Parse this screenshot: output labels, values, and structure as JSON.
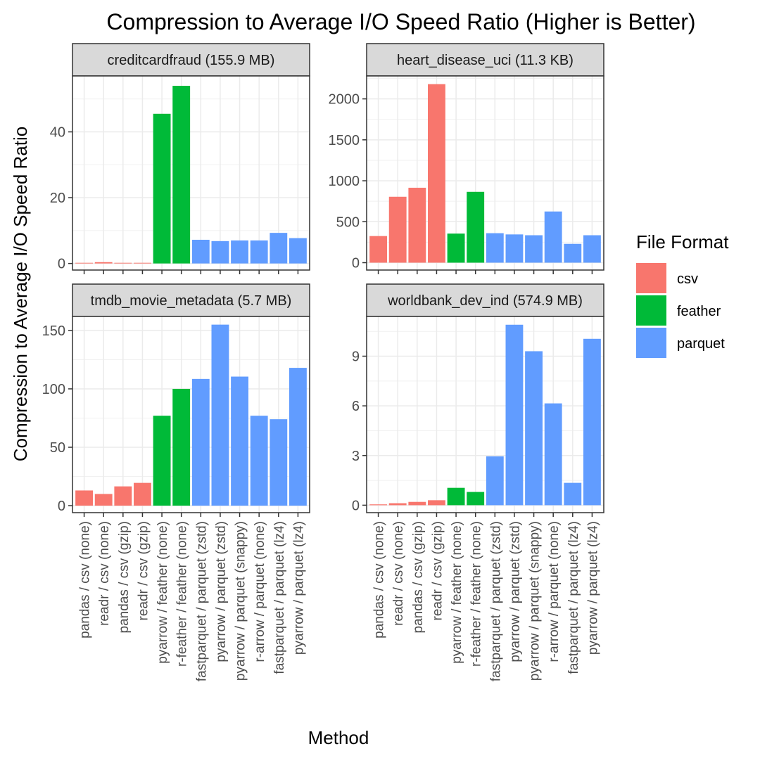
{
  "chart_data": {
    "type": "bar",
    "title": "Compression to Average I/O Speed Ratio (Higher is Better)",
    "xlabel": "Method",
    "ylabel": "Compression to Average I/O Speed Ratio",
    "grid": true,
    "legend": {
      "title": "File Format",
      "placement": "right",
      "entries": [
        {
          "label": "csv",
          "color": "#F8766D"
        },
        {
          "label": "feather",
          "color": "#00BA38"
        },
        {
          "label": "parquet",
          "color": "#619CFF"
        }
      ]
    },
    "categories": [
      "pandas / csv (none)",
      "readr / csv (none)",
      "pandas / csv (gzip)",
      "readr / csv (gzip)",
      "pyarrow / feather (none)",
      "r-feather / feather (none)",
      "fastparquet / parquet (zstd)",
      "pyarrow / parquet (zstd)",
      "pyarrow / parquet (snappy)",
      "r-arrow / parquet (none)",
      "fastparquet / parquet (lz4)",
      "pyarrow / parquet (lz4)"
    ],
    "formats": [
      "csv",
      "csv",
      "csv",
      "csv",
      "feather",
      "feather",
      "parquet",
      "parquet",
      "parquet",
      "parquet",
      "parquet",
      "parquet"
    ],
    "panels": [
      {
        "label": "creditcardfraud (155.9 MB)",
        "ylim": [
          -2,
          57
        ],
        "yticks": [
          0,
          20,
          40
        ],
        "values": [
          0.2,
          0.4,
          0.2,
          0.2,
          45.5,
          54.0,
          7.2,
          6.8,
          7.0,
          7.0,
          9.3,
          7.7
        ]
      },
      {
        "label": "heart_disease_uci (11.3 KB)",
        "ylim": [
          -90,
          2280
        ],
        "yticks": [
          0,
          500,
          1000,
          1500,
          2000
        ],
        "values": [
          325,
          805,
          915,
          2180,
          355,
          865,
          360,
          345,
          335,
          625,
          230,
          335
        ]
      },
      {
        "label": "tmdb_movie_metadata (5.7 MB)",
        "ylim": [
          -6,
          162
        ],
        "yticks": [
          0,
          50,
          100,
          150
        ],
        "values": [
          13,
          10,
          16.5,
          19.5,
          77,
          100,
          108.5,
          155,
          110.5,
          77,
          74,
          118
        ]
      },
      {
        "label": "worldbank_dev_ind (574.9 MB)",
        "ylim": [
          -0.45,
          11.4
        ],
        "yticks": [
          0,
          3,
          6,
          9
        ],
        "values": [
          0.05,
          0.12,
          0.2,
          0.3,
          1.05,
          0.8,
          2.95,
          10.9,
          9.3,
          6.15,
          1.35,
          10.05
        ]
      }
    ]
  }
}
